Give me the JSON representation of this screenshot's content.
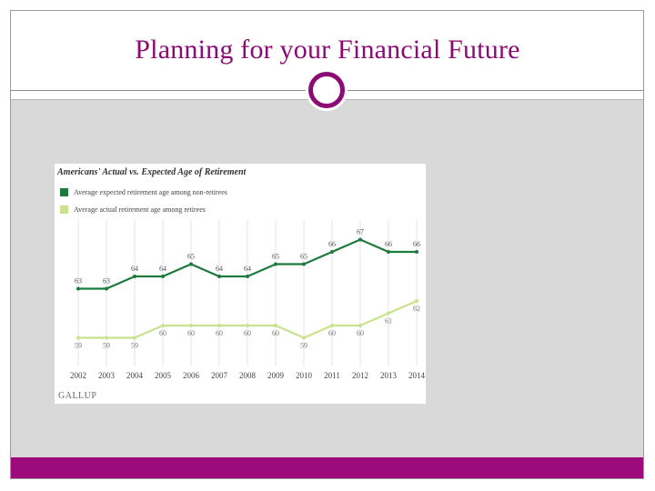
{
  "slide": {
    "title": "Planning for your Financial Future"
  },
  "colors": {
    "accent": "#9c0a7c",
    "title": "#8b0a73",
    "series_expected": "#1e7a3c",
    "series_actual": "#c8e28e"
  },
  "chart_data": {
    "type": "line",
    "title": "Americans' Actual vs. Expected Age of Retirement",
    "x": [
      "2002",
      "2003",
      "2004",
      "2005",
      "2006",
      "2007",
      "2008",
      "2009",
      "2010",
      "2011",
      "2012",
      "2013",
      "2014"
    ],
    "series": [
      {
        "name": "Average expected retirement age among non-retirees",
        "color": "#1e7a3c",
        "values": [
          63,
          63,
          64,
          64,
          65,
          64,
          64,
          65,
          65,
          66,
          67,
          66,
          66
        ]
      },
      {
        "name": "Average actual retirement age among retirees",
        "color": "#c8e28e",
        "values": [
          59,
          59,
          59,
          60,
          60,
          60,
          60,
          60,
          59,
          60,
          60,
          61,
          62
        ]
      }
    ],
    "ylim": [
      58,
      68
    ],
    "grid": "vertical",
    "legend": "top-left",
    "source": "GALLUP"
  }
}
